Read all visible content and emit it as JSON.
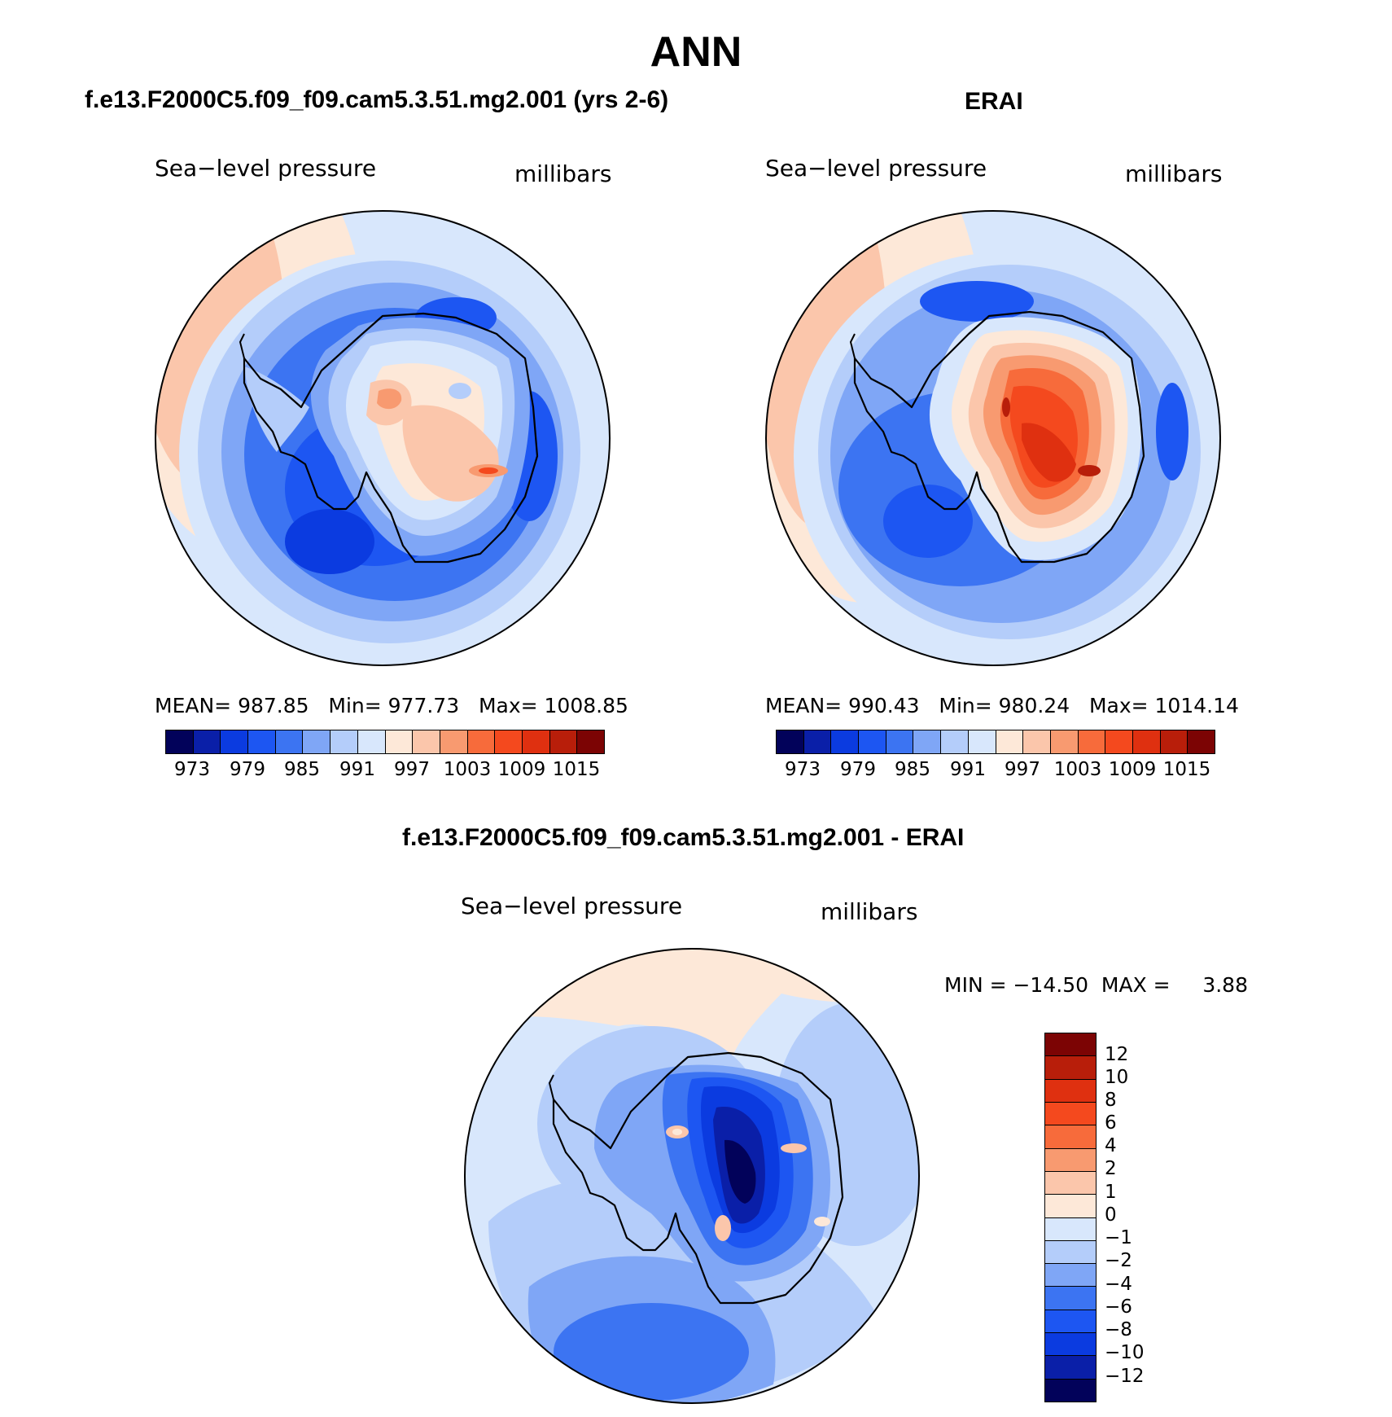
{
  "page": {
    "title": "ANN",
    "palette": [
      "#02025a",
      "#0a1fa8",
      "#0b3be0",
      "#1d56f2",
      "#3c74f2",
      "#7fa6f6",
      "#b4cdfa",
      "#d8e7fc",
      "#fde8d8",
      "#fbc6ab",
      "#f89a70",
      "#f76b3b",
      "#f4491e",
      "#df3010",
      "#b81e0a",
      "#7c0404"
    ]
  },
  "chart_data": [
    {
      "type": "heatmap",
      "panel_title": "f.e13.F2000C5.f09_f09.cam5.3.51.mg2.001 (yrs 2-6)",
      "variable": "Sea−level pressure",
      "units": "millibars",
      "stats": {
        "mean": "987.85",
        "min": "977.73",
        "max": "1008.85"
      },
      "stats_text": "MEAN= 987.85   Min= 977.73   Max= 1008.85",
      "colorbar_ticks": [
        "973",
        "979",
        "985",
        "991",
        "997",
        "1003",
        "1009",
        "1015"
      ]
    },
    {
      "type": "heatmap",
      "panel_title": "ERAI",
      "variable": "Sea−level pressure",
      "units": "millibars",
      "stats": {
        "mean": "990.43",
        "min": "980.24",
        "max": "1014.14"
      },
      "stats_text": "MEAN= 990.43   Min= 980.24   Max= 1014.14",
      "colorbar_ticks": [
        "973",
        "979",
        "985",
        "991",
        "997",
        "1003",
        "1009",
        "1015"
      ]
    },
    {
      "type": "heatmap",
      "panel_title": "f.e13.F2000C5.f09_f09.cam5.3.51.mg2.001 - ERAI",
      "variable": "Sea−level pressure",
      "units": "millibars",
      "stats": {
        "min": "−14.50",
        "max": "3.88"
      },
      "stats_text": "MIN = −14.50  MAX =     3.88",
      "colorbar_ticks": [
        "12",
        "10",
        "8",
        "6",
        "4",
        "2",
        "1",
        "0",
        "−1",
        "−2",
        "−4",
        "−6",
        "−8",
        "−10",
        "−12"
      ]
    }
  ]
}
